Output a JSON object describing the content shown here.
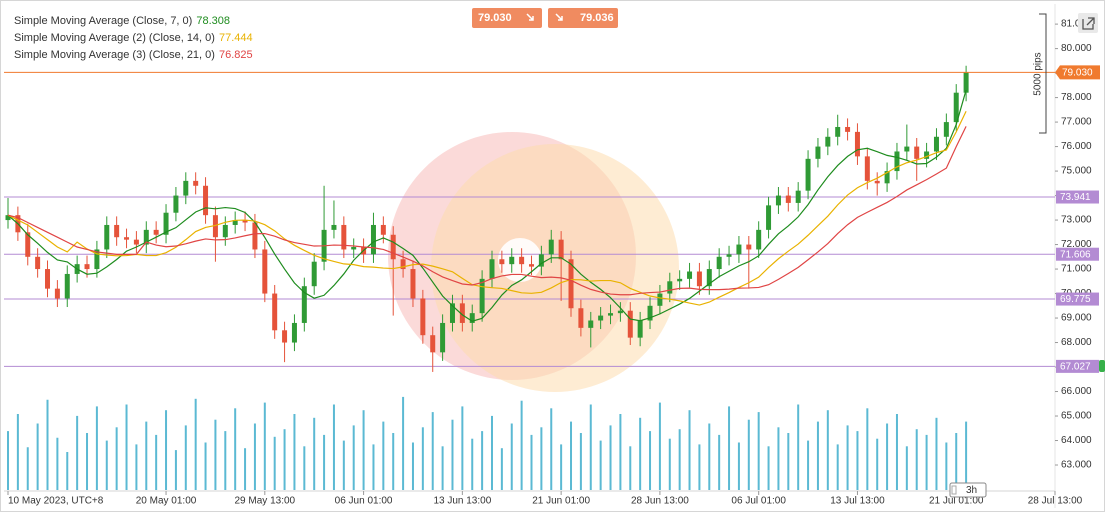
{
  "chart_data": {
    "type": "candlestick",
    "categories": [
      "10 May 2023, UTC+8",
      null,
      null,
      null,
      null,
      null,
      null,
      null,
      null,
      null,
      null,
      null,
      null,
      null,
      null,
      null,
      "20 May 01:00",
      null,
      null,
      null,
      null,
      null,
      null,
      null,
      null,
      null,
      "29 May 13:00",
      null,
      null,
      null,
      null,
      null,
      null,
      null,
      null,
      null,
      "06 Jun 01:00",
      null,
      null,
      null,
      null,
      null,
      null,
      null,
      null,
      null,
      "13 Jun 13:00",
      null,
      null,
      null,
      null,
      null,
      null,
      null,
      null,
      null,
      "21 Jun 01:00",
      null,
      null,
      null,
      null,
      null,
      null,
      null,
      null,
      null,
      "28 Jun 13:00",
      null,
      null,
      null,
      null,
      null,
      null,
      null,
      null,
      null,
      "06 Jul 01:00",
      null,
      null,
      null,
      null,
      null,
      null,
      null,
      null,
      null,
      "13 Jul 13:00",
      null,
      null,
      null,
      null,
      null,
      null,
      null,
      null,
      null,
      "21 Jul 01:00",
      null,
      null,
      null,
      null,
      null,
      null,
      null,
      null,
      null,
      "28 Jul 13:00"
    ],
    "open": [
      73.0,
      73.2,
      72.5,
      71.5,
      71,
      70.2,
      69.8,
      70.8,
      71.2,
      71,
      71.8,
      72.8,
      72.3,
      72.2,
      72,
      72.6,
      72.4,
      73.3,
      74,
      74.6,
      74.4,
      73.2,
      72.3,
      72.8,
      73,
      72.9,
      71.8,
      70,
      68.5,
      68,
      68.8,
      70.3,
      71.3,
      72.6,
      72.8,
      71.8,
      71.9,
      71.6,
      72.8,
      72.4,
      71.4,
      71,
      69.8,
      68.3,
      67.6,
      68.8,
      69.6,
      68.8,
      69.2,
      70.6,
      71.4,
      71.2,
      71.5,
      71.2,
      71.1,
      71.6,
      72.2,
      71.4,
      69.4,
      68.6,
      68.9,
      69.1,
      69.2,
      69.3,
      68.2,
      68.9,
      69.5,
      70,
      70.5,
      70.6,
      70.9,
      70.3,
      71,
      71.5,
      71.6,
      72,
      71.8,
      72.6,
      73.6,
      74,
      73.7,
      74.2,
      75.5,
      76,
      76.4,
      76.8,
      76.6,
      75.6,
      74.6,
      74.5,
      75,
      75.8,
      76,
      75.5,
      75.8,
      76.4,
      77,
      78.2,
      null,
      null,
      null,
      null,
      null,
      null,
      null,
      null,
      null
    ],
    "high": [
      73.9,
      73.55,
      72.85,
      71.85,
      71.35,
      70.55,
      71.15,
      71.55,
      71.55,
      72.15,
      73.15,
      73.15,
      72.65,
      72.55,
      72.95,
      72.95,
      73.65,
      74.35,
      74.95,
      74.95,
      74.75,
      73.55,
      73.15,
      73.35,
      73.35,
      73.25,
      72.15,
      70.35,
      68.85,
      69.15,
      70.65,
      71.65,
      74.4,
      73.8,
      73.15,
      72.25,
      72.25,
      73.3,
      73.15,
      72.75,
      71.75,
      71.35,
      70.15,
      68.65,
      69.15,
      69.95,
      69.95,
      69.55,
      70.95,
      71.75,
      71.75,
      71.85,
      71.85,
      71.55,
      71.95,
      72.6,
      72.55,
      71.75,
      69.75,
      69.25,
      69.45,
      69.55,
      69.65,
      69.65,
      69.25,
      69.85,
      70.35,
      70.85,
      70.95,
      71.25,
      71.25,
      71.35,
      71.85,
      71.95,
      72.35,
      72.35,
      72.95,
      73.95,
      74.35,
      74.35,
      74.55,
      75.85,
      76.35,
      76.75,
      77.3,
      77.15,
      76.95,
      75.95,
      74.95,
      75.35,
      76.15,
      76.9,
      76.35,
      76.15,
      76.75,
      77.35,
      78.55,
      79.3,
      null,
      null,
      null,
      null,
      null,
      null,
      null,
      null,
      null
    ],
    "low": [
      72.65,
      72.15,
      71.15,
      70.65,
      69.85,
      69.45,
      69.45,
      70.45,
      70.65,
      70.65,
      71.45,
      71.95,
      71.85,
      71.65,
      71.65,
      72.05,
      72.05,
      72.95,
      73.65,
      74.05,
      72.85,
      71.3,
      71.95,
      72.45,
      72.55,
      71.45,
      69.65,
      68.15,
      67.2,
      67.65,
      68.45,
      69.95,
      70.95,
      72.25,
      71.45,
      71.45,
      71.25,
      71.25,
      72.05,
      69.1,
      70.65,
      69.45,
      67.95,
      66.8,
      67.25,
      68.45,
      68.45,
      68.45,
      68.85,
      70.25,
      70.85,
      70.85,
      70.85,
      70.75,
      70.75,
      71.25,
      69.7,
      69.05,
      68.25,
      67.8,
      68.55,
      68.75,
      68.85,
      67.9,
      67.85,
      68.55,
      69.15,
      69.65,
      70.15,
      70.25,
      69.95,
      69.95,
      70.65,
      71.15,
      71.25,
      70.2,
      71.45,
      72.25,
      73.25,
      73.35,
      73.35,
      73.85,
      75.15,
      75.65,
      76.05,
      76.25,
      75.25,
      74.25,
      74.0,
      74.15,
      74.65,
      75.45,
      74.6,
      75.15,
      75.45,
      76.05,
      76.65,
      77.85,
      null,
      null,
      null,
      null,
      null,
      null,
      null,
      null,
      null
    ],
    "close": [
      73.2,
      72.5,
      71.5,
      71,
      70.2,
      69.8,
      70.8,
      71.2,
      71,
      71.8,
      72.8,
      72.3,
      72.2,
      72,
      72.6,
      72.4,
      73.3,
      74,
      74.6,
      74.4,
      73.2,
      72.3,
      72.8,
      73,
      72.9,
      71.8,
      70,
      68.5,
      68,
      68.8,
      70.3,
      71.3,
      72.6,
      72.8,
      71.8,
      71.9,
      71.6,
      72.8,
      72.4,
      71.4,
      71,
      69.8,
      68.3,
      67.6,
      68.8,
      69.6,
      68.8,
      69.2,
      70.6,
      71.4,
      71.2,
      71.5,
      71.2,
      71.1,
      71.6,
      72.2,
      71.4,
      69.4,
      68.6,
      68.9,
      69.1,
      69.2,
      69.3,
      68.2,
      68.9,
      69.5,
      70,
      70.5,
      70.6,
      70.9,
      70.3,
      71,
      71.5,
      71.6,
      72,
      71.8,
      72.6,
      73.6,
      74,
      73.7,
      74.2,
      75.5,
      76,
      76.4,
      76.8,
      76.6,
      75.6,
      74.6,
      74.5,
      75,
      75.8,
      76,
      75.5,
      75.8,
      76.4,
      77,
      78.2,
      79.03,
      null,
      null,
      null,
      null,
      null,
      null,
      null,
      null,
      null
    ],
    "up_color": "#2f9a35",
    "down_color": "#e5533a",
    "series": [
      {
        "name": "Simple Moving Average (Close, 7, 0)",
        "color": "#1e8c1e",
        "values": [
          73.2,
          72.85,
          72.4,
          72.05,
          71.68,
          71.37,
          71.29,
          71.0,
          70.79,
          70.83,
          71.09,
          71.39,
          71.73,
          71.9,
          72.1,
          72.3,
          72.51,
          72.69,
          73.01,
          73.33,
          73.5,
          73.46,
          73.51,
          73.47,
          73.31,
          72.91,
          72.29,
          71.61,
          71.0,
          70.43,
          70.04,
          69.81,
          69.93,
          70.33,
          70.8,
          71.36,
          71.76,
          72.11,
          72.27,
          72.1,
          71.84,
          71.56,
          71.04,
          70.47,
          69.9,
          69.5,
          69.13,
          68.87,
          68.99,
          69.43,
          69.94,
          70.33,
          70.56,
          70.89,
          71.23,
          71.46,
          71.46,
          71.2,
          70.79,
          70.46,
          70.17,
          69.83,
          69.41,
          68.96,
          68.89,
          69.01,
          69.17,
          69.37,
          69.57,
          69.8,
          70.1,
          70.4,
          70.69,
          70.91,
          71.13,
          71.3,
          71.54,
          72.01,
          72.44,
          72.76,
          73.13,
          73.63,
          74.23,
          74.77,
          75.23,
          75.6,
          75.87,
          75.93,
          75.79,
          75.64,
          75.56,
          75.44,
          75.29,
          75.31,
          75.57,
          75.93,
          76.9,
          78.308,
          null,
          null,
          null,
          null,
          null,
          null,
          null,
          null,
          null
        ]
      },
      {
        "name": "Simple Moving Average (2) (Close, 14, 0)",
        "color": "#e9b200",
        "values": [
          73.2,
          73.0,
          72.8,
          72.5,
          72.2,
          71.9,
          71.7,
          72.1,
          71.82,
          71.62,
          71.57,
          71.54,
          71.55,
          71.6,
          71.55,
          71.55,
          71.67,
          71.89,
          72.2,
          72.53,
          72.7,
          72.78,
          72.91,
          72.99,
          73.0,
          72.96,
          72.81,
          72.56,
          72.23,
          71.97,
          71.76,
          71.56,
          71.42,
          71.31,
          71.21,
          71.18,
          71.1,
          71.08,
          71.04,
          71.02,
          71.09,
          71.18,
          71.2,
          71.12,
          71.01,
          70.89,
          70.62,
          70.36,
          70.28,
          70.24,
          70.21,
          70.12,
          70.03,
          70.01,
          70.05,
          70.23,
          70.45,
          70.57,
          70.56,
          70.51,
          70.53,
          70.53,
          70.44,
          70.21,
          70.05,
          69.9,
          69.82,
          69.77,
          69.7,
          69.61,
          69.53,
          69.65,
          69.85,
          70.04,
          70.25,
          70.44,
          70.67,
          71.06,
          71.42,
          71.73,
          72.02,
          72.38,
          72.77,
          73.16,
          73.62,
          74.02,
          74.32,
          74.53,
          74.71,
          74.94,
          75.17,
          75.34,
          75.45,
          75.59,
          75.75,
          75.86,
          76.6,
          77.444,
          null,
          null,
          null,
          null,
          null,
          null,
          null,
          null,
          null
        ]
      },
      {
        "name": "Simple Moving Average (3) (Close, 21, 0)",
        "color": "#e04545",
        "values": [
          73.2,
          73.1,
          72.9,
          72.7,
          72.5,
          72.3,
          72.1,
          71.9,
          71.8,
          71.7,
          71.65,
          71.6,
          71.6,
          71.6,
          72.1,
          71.98,
          71.91,
          71.94,
          72.03,
          72.14,
          72.23,
          72.19,
          72.2,
          72.27,
          72.36,
          72.44,
          72.45,
          72.34,
          72.19,
          72.08,
          72.01,
          71.94,
          71.95,
          71.98,
          71.97,
          71.94,
          71.9,
          71.87,
          71.8,
          71.65,
          71.49,
          71.32,
          71.13,
          70.89,
          70.68,
          70.53,
          70.39,
          70.35,
          70.45,
          70.61,
          70.72,
          70.78,
          70.78,
          70.71,
          70.65,
          70.67,
          70.64,
          70.54,
          70.34,
          70.17,
          70.06,
          69.98,
          69.95,
          69.95,
          70.01,
          70.04,
          70.06,
          70.14,
          70.21,
          70.22,
          70.17,
          70.16,
          70.16,
          70.18,
          70.22,
          70.23,
          70.25,
          70.36,
          70.58,
          70.82,
          71.07,
          71.38,
          71.7,
          72.04,
          72.45,
          72.81,
          73.11,
          73.32,
          73.52,
          73.72,
          73.96,
          74.23,
          74.44,
          74.65,
          74.88,
          75.12,
          76.0,
          76.825,
          null,
          null,
          null,
          null,
          null,
          null,
          null,
          null,
          null
        ]
      }
    ],
    "volume": {
      "color": "#5bb9d3",
      "ylim": [
        0,
        100
      ],
      "values": [
        62,
        80,
        45,
        70,
        95,
        55,
        40,
        78,
        60,
        88,
        52,
        66,
        90,
        48,
        72,
        58,
        84,
        42,
        68,
        96,
        50,
        74,
        62,
        86,
        44,
        70,
        92,
        56,
        64,
        80,
        46,
        76,
        58,
        90,
        52,
        68,
        84,
        48,
        72,
        60,
        98,
        50,
        66,
        82,
        46,
        74,
        88,
        54,
        62,
        78,
        44,
        70,
        94,
        58,
        66,
        86,
        48,
        72,
        60,
        90,
        52,
        68,
        80,
        46,
        76,
        62,
        92,
        54,
        64,
        84,
        48,
        70,
        58,
        88,
        50,
        74,
        82,
        46,
        66,
        60,
        90,
        52,
        72,
        84,
        48,
        68,
        62,
        86,
        54,
        70,
        80,
        46,
        64,
        58,
        76,
        50,
        60,
        72,
        null,
        null,
        null,
        null,
        null,
        null,
        null,
        null,
        null
      ]
    },
    "ylim": [
      61.98,
      81.78
    ],
    "yticks": [
      {
        "value": 63,
        "label": "63.000"
      },
      {
        "value": 64,
        "label": "64.000"
      },
      {
        "value": 65,
        "label": "65.000"
      },
      {
        "value": 66,
        "label": "66.000"
      },
      {
        "value": 67,
        "label": "67.000"
      },
      {
        "value": 68,
        "label": "68.000"
      },
      {
        "value": 69,
        "label": "69.000"
      },
      {
        "value": 70,
        "label": "70.000"
      },
      {
        "value": 71,
        "label": "71.000"
      },
      {
        "value": 72,
        "label": "72.000"
      },
      {
        "value": 73,
        "label": "73.000"
      },
      {
        "value": 74,
        "label": "74.000"
      },
      {
        "value": 75,
        "label": "75.000"
      },
      {
        "value": 76,
        "label": "76.000"
      },
      {
        "value": 77,
        "label": "77.000"
      },
      {
        "value": 78,
        "label": "78.000"
      },
      {
        "value": 79,
        "label": "79.000"
      },
      {
        "value": 80,
        "label": "80.000"
      },
      {
        "value": 81,
        "label": "81.000"
      }
    ],
    "levels": [
      73.941,
      71.606,
      69.775,
      67.027
    ],
    "level_color": "#b38bd3",
    "last_price": {
      "value": 79.03,
      "label": "79.030"
    },
    "last_price_color": "#f07a2e",
    "quotes": [
      "79.030",
      "79.036"
    ],
    "pips_label": "5000 pips",
    "timeframe": "3h"
  }
}
